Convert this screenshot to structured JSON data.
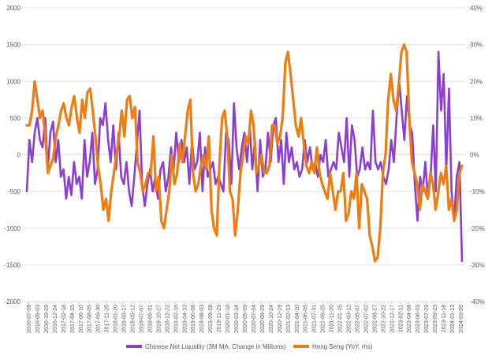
{
  "chart_data": {
    "type": "line",
    "title": "",
    "xlabel": "",
    "ylabel": "",
    "x_ticks": [
      "2016-07-09",
      "2016-09-03",
      "2016-10-29",
      "2016-12-24",
      "2017-02-18",
      "2017-04-15",
      "2017-06-10",
      "2017-08-05",
      "2017-09-30",
      "2017-11-25",
      "2018-01-20",
      "2018-03-17",
      "2018-05-12",
      "2018-07-07",
      "2018-09-01",
      "2018-10-27",
      "2018-12-22",
      "2019-02-16",
      "2019-04-13",
      "2019-06-08",
      "2019-08-03",
      "2019-09-28",
      "2019-11-23",
      "2020-01-18",
      "2020-03-14",
      "2020-05-09",
      "2020-07-04",
      "2020-08-29",
      "2020-10-24",
      "2020-12-19",
      "2021-02-13",
      "2021-04-10",
      "2021-06-05",
      "2021-07-31",
      "2021-09-25",
      "2021-11-20",
      "2022-01-15",
      "2022-03-12",
      "2022-05-07",
      "2022-07-02",
      "2022-08-27",
      "2022-10-22",
      "2022-12-17",
      "2023-02-11",
      "2023-04-08",
      "2023-06-03",
      "2023-07-29",
      "2023-09-23",
      "2023-11-18",
      "2024-01-13",
      "2024-03-09"
    ],
    "y_left": {
      "ticks": [
        "2000",
        "1500",
        "1000",
        "500",
        "0",
        "-500",
        "-1000",
        "-1500",
        "-2000"
      ],
      "range": [
        -2000,
        2000
      ]
    },
    "y_right": {
      "ticks": [
        "40%",
        "30%",
        "20%",
        "10%",
        "0%",
        "-10%",
        "-20%",
        "-30%",
        "-40%"
      ],
      "range": [
        -40,
        40
      ]
    },
    "grid": "horizontal",
    "legend_position": "bottom",
    "series": [
      {
        "name": "Chinese Net Liquidity (3M MA, Change in Millions)",
        "axis": "left",
        "color": "#8B3FD1",
        "values": [
          -500,
          200,
          -100,
          300,
          500,
          200,
          100,
          500,
          -200,
          300,
          450,
          -100,
          200,
          -300,
          -200,
          -600,
          -300,
          -550,
          -100,
          -400,
          -300,
          -600,
          200,
          -300,
          -100,
          300,
          -400,
          -200,
          500,
          400,
          700,
          200,
          -100,
          400,
          -200,
          300,
          -300,
          -400,
          -100,
          -500,
          -700,
          -300,
          150,
          600,
          -400,
          -700,
          -400,
          -200,
          -500,
          -300,
          -600,
          -200,
          -100,
          -500,
          -300,
          100,
          -200,
          300,
          -100,
          200,
          -100,
          100,
          -400,
          200,
          -200,
          -100,
          300,
          -500,
          100,
          -300,
          -200,
          -100,
          -400,
          -300,
          -400,
          -500,
          300,
          200,
          -400,
          700,
          100,
          -200,
          100,
          300,
          -100,
          400,
          -200,
          200,
          -500,
          200,
          -300,
          -200,
          300,
          -100,
          400,
          500,
          -100,
          200,
          -400,
          300,
          -100,
          100,
          -200,
          -100,
          -300,
          -200,
          200,
          -100,
          100,
          -200,
          -100,
          -300,
          0,
          -100,
          200,
          -300,
          -200,
          -100,
          -200,
          300,
          100,
          -100,
          500,
          -300,
          400,
          200,
          -300,
          -200,
          100,
          -200,
          -100,
          -200,
          600,
          -100,
          -200,
          -100,
          -300,
          -400,
          -200,
          200,
          -100,
          500,
          1000,
          600,
          200,
          800,
          400,
          300,
          -400,
          -900,
          -300,
          -500,
          -100,
          -600,
          -300,
          400,
          -500,
          1400,
          600,
          1100,
          -200,
          900,
          -500,
          -900,
          -300,
          -100,
          -1450
        ]
      },
      {
        "name": "Heng Seng (YoY, rhs)",
        "axis": "right",
        "color": "#ED7D11",
        "values": [
          8,
          8,
          12,
          20,
          15,
          10,
          12,
          5,
          -5,
          -3,
          -1,
          5,
          8,
          12,
          14,
          10,
          8,
          13,
          16,
          10,
          6,
          15,
          10,
          17,
          18,
          12,
          5,
          -3,
          -8,
          -15,
          -12,
          -18,
          -10,
          -5,
          0,
          5,
          12,
          5,
          15,
          16,
          10,
          13,
          -2,
          -5,
          -10,
          -8,
          -5,
          -5,
          5,
          -10,
          -6,
          -18,
          -20,
          -15,
          -10,
          0,
          -8,
          -5,
          3,
          -2,
          5,
          12,
          15,
          -5,
          -10,
          -8,
          -3,
          0,
          -4,
          5,
          -15,
          -20,
          -22,
          -3,
          10,
          12,
          5,
          -10,
          -12,
          -22,
          -15,
          -5,
          0,
          5,
          3,
          12,
          8,
          -5,
          -3,
          0,
          -5,
          -5,
          -3,
          8,
          8,
          3,
          5,
          10,
          25,
          28,
          22,
          15,
          8,
          5,
          10,
          3,
          -3,
          -5,
          -2,
          -5,
          2,
          -5,
          -8,
          -10,
          -12,
          -5,
          -10,
          -15,
          -10,
          -10,
          -5,
          -18,
          -16,
          -10,
          -12,
          -5,
          -20,
          -8,
          -10,
          -12,
          -22,
          -25,
          -29,
          -28,
          -20,
          -5,
          0,
          15,
          22,
          15,
          12,
          19,
          28,
          30,
          28,
          10,
          -2,
          -5,
          -8,
          -15,
          -8,
          -10,
          -12,
          -5,
          -8,
          -15,
          -10,
          -5,
          -8,
          -3,
          -15,
          -12,
          -18,
          -15,
          -5,
          -3
        ]
      }
    ]
  }
}
